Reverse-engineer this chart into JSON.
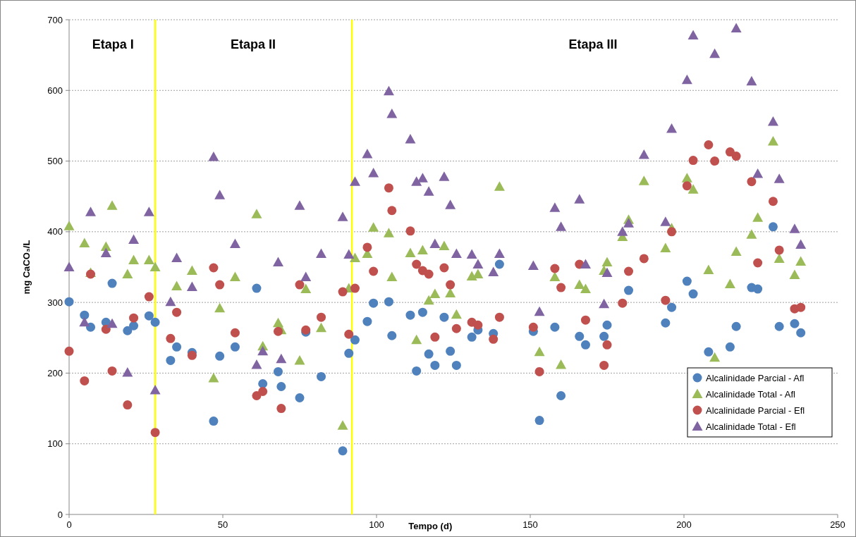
{
  "chart_data": {
    "type": "scatter",
    "xlabel": "Tempo (d)",
    "ylabel": "mg CaCO₃/L",
    "xlim": [
      0,
      250
    ],
    "xticks": [
      0,
      50,
      100,
      150,
      200,
      250
    ],
    "ylim": [
      0,
      700
    ],
    "yticks": [
      0,
      100,
      200,
      300,
      400,
      500,
      600,
      700
    ],
    "grid": "y",
    "legend": "bottom right",
    "annotations": [
      "Etapa I",
      "Etapa II",
      "Etapa III"
    ],
    "ref_lines": [
      {
        "axis": "x",
        "value": 28,
        "color": "#ffff00"
      },
      {
        "axis": "x",
        "value": 92,
        "color": "#ffff00"
      }
    ],
    "series": [
      {
        "name": "Alcalinidade Parcial - Afl",
        "color": "#4f81bd",
        "marker": "circle",
        "x": [
          0,
          5,
          7,
          12,
          14,
          19,
          21,
          26,
          28,
          33,
          35,
          40,
          47,
          49,
          54,
          61,
          63,
          68,
          69,
          75,
          77,
          82,
          89,
          91,
          93,
          97,
          99,
          104,
          105,
          111,
          113,
          115,
          117,
          119,
          122,
          124,
          126,
          131,
          133,
          138,
          140,
          151,
          153,
          158,
          160,
          166,
          168,
          174,
          175,
          182,
          194,
          196,
          201,
          203,
          208,
          215,
          217,
          222,
          224,
          229,
          231,
          236,
          238
        ],
        "values": [
          301,
          282,
          265,
          272,
          327,
          260,
          267,
          281,
          272,
          218,
          237,
          229,
          132,
          224,
          237,
          320,
          185,
          202,
          181,
          165,
          258,
          195,
          90,
          228,
          247,
          273,
          299,
          301,
          253,
          282,
          203,
          286,
          227,
          211,
          279,
          231,
          211,
          251,
          261,
          256,
          354,
          259,
          133,
          265,
          168,
          252,
          240,
          252,
          268,
          317,
          271,
          293,
          330,
          312,
          230,
          237,
          266,
          321,
          319,
          407,
          266,
          270,
          257
        ]
      },
      {
        "name": "Alcalinidade Total - Afl",
        "color": "#9bbb59",
        "marker": "triangle",
        "x": [
          0,
          5,
          7,
          12,
          14,
          19,
          21,
          26,
          28,
          35,
          40,
          47,
          49,
          54,
          61,
          63,
          68,
          69,
          75,
          77,
          82,
          89,
          91,
          93,
          97,
          99,
          104,
          105,
          111,
          113,
          115,
          117,
          119,
          122,
          124,
          126,
          131,
          133,
          140,
          153,
          158,
          160,
          166,
          168,
          174,
          175,
          180,
          182,
          187,
          194,
          196,
          201,
          203,
          208,
          210,
          215,
          217,
          222,
          224,
          229,
          231,
          236,
          238
        ],
        "values": [
          408,
          384,
          342,
          379,
          437,
          340,
          360,
          360,
          350,
          323,
          345,
          193,
          292,
          336,
          425,
          238,
          271,
          261,
          218,
          319,
          264,
          126,
          320,
          363,
          369,
          406,
          398,
          336,
          370,
          247,
          374,
          303,
          312,
          380,
          313,
          283,
          337,
          340,
          464,
          230,
          336,
          212,
          325,
          319,
          345,
          357,
          393,
          417,
          472,
          377,
          405,
          476,
          460,
          346,
          222,
          326,
          372,
          396,
          420,
          528,
          362,
          339,
          358
        ]
      },
      {
        "name": "Alcalinidade Parcial - Efl",
        "color": "#c0504d",
        "marker": "circle",
        "x": [
          0,
          5,
          7,
          12,
          14,
          19,
          21,
          26,
          28,
          33,
          35,
          40,
          47,
          49,
          54,
          61,
          63,
          68,
          69,
          75,
          77,
          82,
          89,
          91,
          93,
          97,
          99,
          104,
          105,
          111,
          113,
          115,
          117,
          119,
          122,
          124,
          126,
          131,
          133,
          138,
          140,
          151,
          153,
          158,
          160,
          166,
          168,
          174,
          175,
          180,
          182,
          187,
          194,
          196,
          201,
          203,
          208,
          210,
          215,
          217,
          222,
          224,
          229,
          231,
          236,
          238
        ],
        "values": [
          231,
          189,
          340,
          262,
          203,
          155,
          278,
          308,
          116,
          249,
          286,
          225,
          349,
          325,
          257,
          168,
          174,
          259,
          150,
          325,
          261,
          279,
          315,
          255,
          320,
          378,
          344,
          462,
          430,
          401,
          354,
          345,
          340,
          251,
          349,
          325,
          263,
          272,
          268,
          248,
          279,
          265,
          202,
          348,
          321,
          354,
          275,
          211,
          240,
          299,
          344,
          362,
          303,
          400,
          465,
          501,
          523,
          500,
          513,
          507,
          471,
          356,
          443,
          374,
          291,
          293
        ]
      },
      {
        "name": "Alcalinidade Total - Efl",
        "color": "#8064a2",
        "marker": "triangle",
        "x": [
          0,
          5,
          7,
          12,
          14,
          19,
          21,
          26,
          28,
          33,
          35,
          40,
          47,
          49,
          54,
          61,
          63,
          68,
          69,
          75,
          77,
          82,
          89,
          91,
          93,
          97,
          99,
          104,
          105,
          111,
          113,
          115,
          117,
          119,
          122,
          124,
          126,
          131,
          133,
          138,
          140,
          151,
          153,
          158,
          160,
          166,
          168,
          174,
          175,
          180,
          182,
          187,
          194,
          196,
          201,
          203,
          210,
          217,
          222,
          224,
          229,
          231,
          236,
          238
        ],
        "values": [
          350,
          272,
          428,
          370,
          270,
          201,
          389,
          428,
          176,
          301,
          363,
          322,
          506,
          452,
          383,
          212,
          231,
          357,
          220,
          437,
          336,
          369,
          421,
          368,
          471,
          510,
          483,
          599,
          567,
          531,
          471,
          476,
          457,
          383,
          478,
          438,
          369,
          368,
          354,
          343,
          369,
          352,
          287,
          434,
          407,
          446,
          354,
          298,
          342,
          400,
          412,
          509,
          414,
          546,
          615,
          678,
          652,
          688,
          613,
          482,
          556,
          475,
          404,
          382
        ]
      }
    ]
  }
}
